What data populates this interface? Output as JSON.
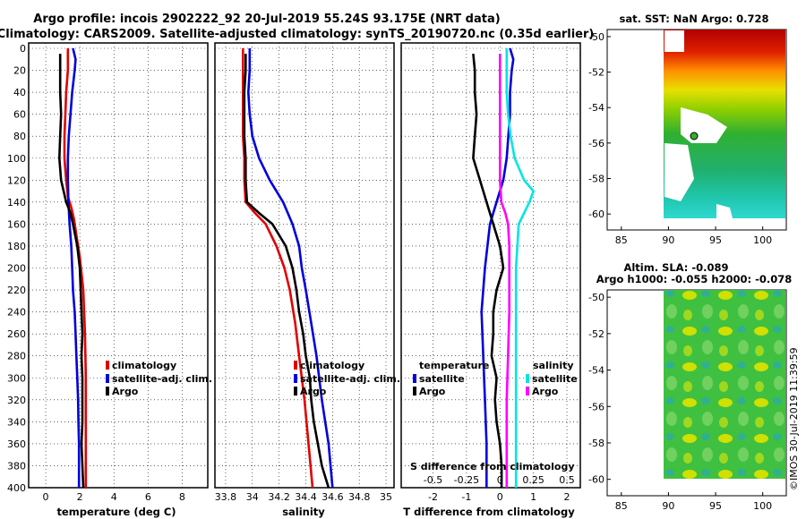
{
  "title_line1": "Argo profile: incois 2902222_92 20-Jul-2019 55.24S 93.175E (NRT data)",
  "title_line2": "Climatology: CARS2009. Satellite-adjusted climatology: synTS_20190720.nc (0.35d earlier)",
  "timestamp": "©IMOS 30-Jul-2019 11:39:59",
  "colors": {
    "climatology": "#e00000",
    "satellite": "#0000dd",
    "argo": "#000000",
    "salinity_sat": "#00e5e5",
    "salinity_clim": "#ff00ff"
  },
  "depth_ticks": [
    "0",
    "20",
    "40",
    "60",
    "80",
    "100",
    "120",
    "140",
    "160",
    "180",
    "200",
    "220",
    "240",
    "260",
    "280",
    "300",
    "320",
    "340",
    "360",
    "380",
    "400"
  ],
  "chart_data": [
    {
      "type": "line",
      "name": "temperature",
      "xlabel": "temperature (deg C)",
      "ylabel": "depth",
      "xlim": [
        -1,
        9.5
      ],
      "ylim": [
        400,
        0
      ],
      "xticks": [
        "0",
        "2",
        "4",
        "6",
        "8"
      ],
      "grid": true,
      "legend": [
        "climatology",
        "satellite-adj. clim.",
        "Argo"
      ],
      "series": [
        {
          "name": "climatology",
          "depth": [
            0,
            20,
            40,
            60,
            80,
            100,
            120,
            135,
            145,
            155,
            170,
            190,
            220,
            260,
            300,
            340,
            400
          ],
          "values": [
            1.3,
            1.3,
            1.2,
            1.15,
            1.1,
            1.1,
            1.2,
            1.3,
            1.5,
            1.65,
            1.8,
            2.0,
            2.2,
            2.3,
            2.35,
            2.35,
            2.35
          ]
        },
        {
          "name": "satellite-adj. clim.",
          "depth": [
            0,
            10,
            20,
            40,
            60,
            80,
            100,
            120,
            140,
            160,
            180,
            200,
            220,
            240,
            260,
            280,
            300,
            320,
            340,
            360,
            380,
            400
          ],
          "values": [
            1.6,
            1.75,
            1.7,
            1.55,
            1.45,
            1.35,
            1.3,
            1.3,
            1.33,
            1.4,
            1.5,
            1.55,
            1.6,
            1.7,
            1.75,
            1.8,
            1.85,
            1.9,
            1.92,
            1.95,
            1.95,
            1.95
          ]
        },
        {
          "name": "Argo",
          "depth": [
            5,
            20,
            40,
            60,
            80,
            100,
            120,
            140,
            150,
            160,
            180,
            200,
            220,
            240,
            260,
            280,
            300,
            320,
            340,
            360,
            380,
            400
          ],
          "values": [
            0.85,
            0.85,
            0.85,
            0.9,
            0.85,
            0.8,
            0.9,
            1.2,
            1.45,
            1.6,
            1.85,
            2.0,
            2.05,
            2.1,
            2.15,
            2.1,
            2.15,
            2.15,
            2.15,
            2.1,
            2.15,
            2.2
          ]
        }
      ]
    },
    {
      "type": "line",
      "name": "salinity",
      "xlabel": "salinity",
      "ylabel": "depth",
      "xlim": [
        33.72,
        35.06
      ],
      "ylim": [
        400,
        0
      ],
      "xticks": [
        "33.8",
        "34",
        "34.2",
        "34.4",
        "34.6",
        "34.8",
        "35"
      ],
      "grid": true,
      "legend": [
        "climatology",
        "satellite-adj. clim.",
        "Argo"
      ],
      "series": [
        {
          "name": "climatology",
          "depth": [
            0,
            20,
            40,
            60,
            80,
            100,
            120,
            140,
            150,
            160,
            180,
            200,
            220,
            250,
            280,
            320,
            360,
            400
          ],
          "values": [
            33.93,
            33.93,
            33.93,
            33.93,
            33.93,
            33.94,
            33.94,
            33.95,
            34.02,
            34.1,
            34.18,
            34.24,
            34.28,
            34.32,
            34.35,
            34.39,
            34.42,
            34.45
          ]
        },
        {
          "name": "satellite-adj. clim.",
          "depth": [
            0,
            20,
            40,
            60,
            80,
            100,
            120,
            140,
            160,
            180,
            200,
            220,
            250,
            280,
            320,
            360,
            400
          ],
          "values": [
            33.98,
            33.98,
            33.97,
            33.98,
            34.0,
            34.05,
            34.13,
            34.23,
            34.3,
            34.35,
            34.37,
            34.4,
            34.44,
            34.48,
            34.52,
            34.57,
            34.6
          ]
        },
        {
          "name": "Argo",
          "depth": [
            5,
            20,
            40,
            60,
            80,
            100,
            120,
            140,
            150,
            160,
            180,
            200,
            220,
            240,
            260,
            280,
            300,
            320,
            340,
            360,
            380,
            400
          ],
          "values": [
            33.95,
            33.95,
            33.94,
            33.94,
            33.94,
            33.95,
            33.95,
            33.96,
            34.05,
            34.15,
            34.25,
            34.3,
            34.33,
            34.35,
            34.38,
            34.4,
            34.43,
            34.44,
            34.46,
            34.49,
            34.52,
            34.57
          ]
        }
      ]
    },
    {
      "type": "line",
      "name": "difference",
      "xlabel": "T difference from climatology",
      "ylabel": "depth",
      "xlim": [
        -2.95,
        2.4
      ],
      "ylim": [
        400,
        0
      ],
      "xticks": [
        "-2",
        "-1",
        "0",
        "1",
        "2"
      ],
      "top_axis_label": "S difference from climatology",
      "top_xticks": [
        "-0.5",
        "-0.25",
        "0",
        "0.25",
        "0.5"
      ],
      "grid": true,
      "legend_temperature": [
        "temperature",
        "satellite",
        "Argo"
      ],
      "legend_salinity": [
        "salinity",
        "satellite",
        "Argo"
      ],
      "series": [
        {
          "name": "temperature satellite",
          "depth": [
            0,
            10,
            20,
            40,
            60,
            80,
            100,
            120,
            140,
            160,
            200,
            240,
            280,
            320,
            360,
            400
          ],
          "values": [
            0.3,
            0.4,
            0.35,
            0.3,
            0.3,
            0.25,
            0.2,
            0.1,
            -0.1,
            -0.3,
            -0.45,
            -0.55,
            -0.5,
            -0.45,
            -0.4,
            -0.4
          ]
        },
        {
          "name": "temperature Argo",
          "depth": [
            5,
            20,
            40,
            60,
            80,
            100,
            120,
            140,
            160,
            180,
            200,
            220,
            240,
            260,
            280,
            300,
            320,
            340,
            360,
            380,
            400
          ],
          "values": [
            -0.8,
            -0.75,
            -0.75,
            -0.7,
            -0.75,
            -0.8,
            -0.6,
            -0.4,
            -0.2,
            0,
            0.1,
            -0.1,
            -0.2,
            -0.2,
            -0.25,
            -0.1,
            -0.15,
            -0.1,
            0,
            0.05,
            0.05
          ]
        },
        {
          "name": "salinity satellite",
          "depth": [
            0,
            20,
            40,
            60,
            80,
            100,
            120,
            130,
            140,
            160,
            200,
            260,
            320,
            400
          ],
          "values": [
            0.05,
            0.05,
            0.05,
            0.06,
            0.08,
            0.11,
            0.18,
            0.25,
            0.22,
            0.14,
            0.12,
            0.12,
            0.12,
            0.12
          ]
        },
        {
          "name": "salinity Argo",
          "depth": [
            5,
            20,
            40,
            60,
            80,
            100,
            120,
            140,
            150,
            160,
            180,
            200,
            240,
            280,
            320,
            360,
            400
          ],
          "values": [
            0.0,
            0.0,
            0.0,
            0.0,
            0.0,
            0.0,
            0.0,
            0.01,
            0.04,
            0.06,
            0.07,
            0.07,
            0.07,
            0.06,
            0.05,
            0.05,
            0.05
          ]
        }
      ]
    },
    {
      "type": "heatmap",
      "name": "sst_map",
      "title": "sat. SST: NaN Argo: 0.728",
      "xticks": [
        "85",
        "90",
        "95",
        "100"
      ],
      "yticks": [
        "-50",
        "-52",
        "-54",
        "-56",
        "-58",
        "-60"
      ],
      "xlim": [
        83.5,
        102.5
      ],
      "ylim": [
        -60.9,
        -49.6
      ]
    },
    {
      "type": "heatmap",
      "name": "sla_map",
      "title_line1": "Altim. SLA: -0.089",
      "title_line2": "Argo h1000: -0.055 h2000: -0.078",
      "xticks": [
        "85",
        "90",
        "95",
        "100"
      ],
      "yticks": [
        "-50",
        "-52",
        "-54",
        "-56",
        "-58",
        "-60"
      ],
      "xlim": [
        83.5,
        102.5
      ],
      "ylim": [
        -60.9,
        -49.6
      ]
    }
  ]
}
